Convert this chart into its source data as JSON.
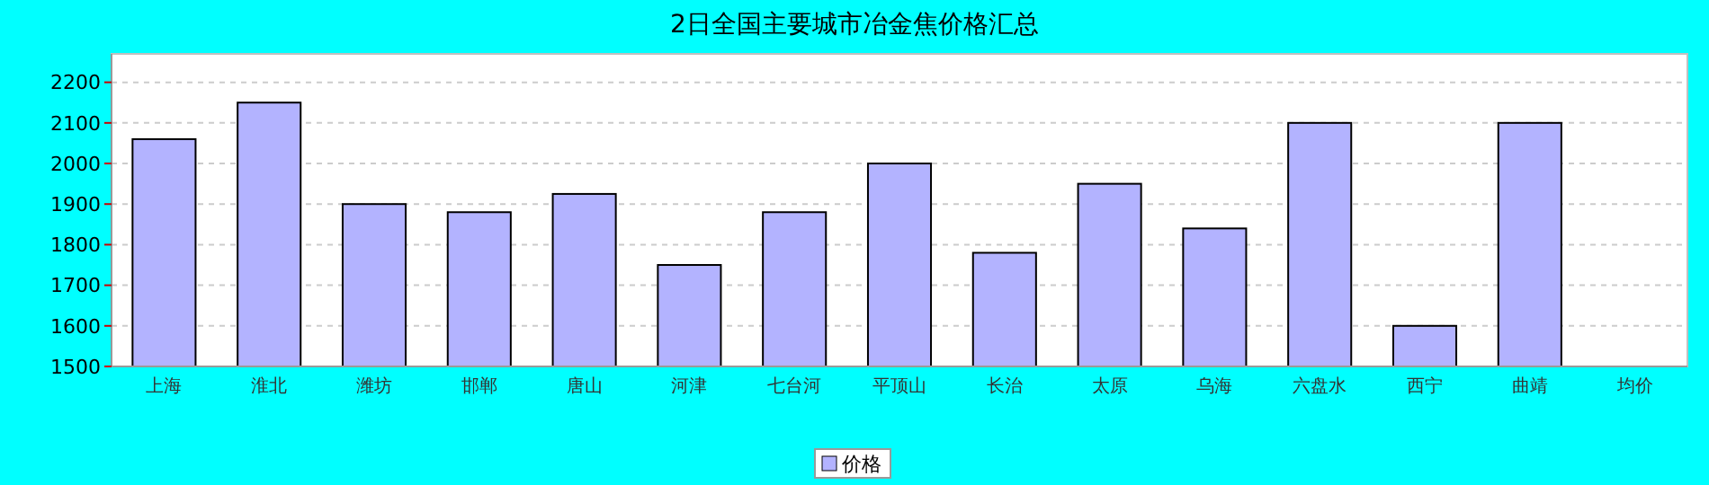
{
  "chart_data": {
    "type": "bar",
    "title": "2日全国主要城市冶金焦价格汇总",
    "categories": [
      "上海",
      "淮北",
      "潍坊",
      "邯郸",
      "唐山",
      "河津",
      "七台河",
      "平顶山",
      "长治",
      "太原",
      "乌海",
      "六盘水",
      "西宁",
      "曲靖",
      "均价"
    ],
    "series": [
      {
        "name": "价格",
        "color": "#b3b3ff",
        "values": [
          2060,
          2150,
          1900,
          1880,
          1925,
          1750,
          1880,
          2000,
          1780,
          1950,
          1840,
          2100,
          1600,
          2100,
          null
        ]
      }
    ],
    "ylim": [
      1500,
      2270
    ],
    "yticks": [
      1500,
      1600,
      1700,
      1800,
      1900,
      2000,
      2100,
      2200
    ],
    "grid": "y",
    "legend": "bottom"
  }
}
